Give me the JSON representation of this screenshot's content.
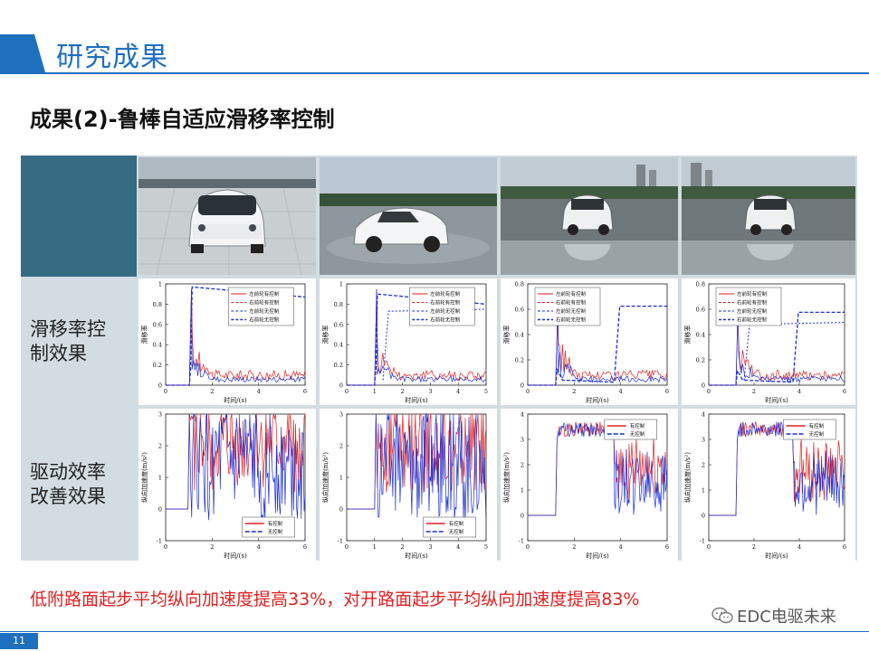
{
  "header": {
    "title": "研究成果"
  },
  "subtitle": "成果(2)-鲁棒自适应滑移率控制",
  "rows": [
    {
      "label_line1": "滑移率控",
      "label_line2": "制效果"
    },
    {
      "label_line1": "驱动效率",
      "label_line2": "改善效果"
    }
  ],
  "slip_plots": [
    {
      "ylabel": "滑移率",
      "xlabel": "时间/(s)",
      "yticks": [
        "0",
        "0.2",
        "0.4",
        "0.6",
        "0.8",
        "1"
      ],
      "xticks": [
        "0",
        "2",
        "4",
        "6"
      ],
      "legend": [
        "左前轮有控制",
        "右前轮有控制",
        "左前轮无控制",
        "右前轮无控制"
      ]
    },
    {
      "ylabel": "滑移率",
      "xlabel": "时间/(s)",
      "yticks": [
        "0",
        "0.2",
        "0.4",
        "0.6",
        "0.8",
        "1"
      ],
      "xticks": [
        "0",
        "1",
        "2",
        "3",
        "4",
        "5"
      ],
      "legend": [
        "左前轮有控制",
        "右前轮有控制",
        "左前轮无控制",
        "右前轮无控制"
      ]
    },
    {
      "ylabel": "滑移率",
      "xlabel": "时间/(s)",
      "yticks": [
        "0",
        "0.2",
        "0.4",
        "0.6",
        "0.8"
      ],
      "xticks": [
        "0",
        "2",
        "4",
        "6"
      ],
      "legend": [
        "左前轮有控制",
        "右前轮有控制",
        "左前轮无控制",
        "右前轮无控制"
      ]
    },
    {
      "ylabel": "滑移率",
      "xlabel": "时间/(s)",
      "yticks": [
        "0",
        "0.2",
        "0.4",
        "0.6",
        "0.8"
      ],
      "xticks": [
        "0",
        "2",
        "4",
        "6"
      ],
      "legend": [
        "左前轮有控制",
        "右前轮有控制",
        "左前轮无控制",
        "右前轮无控制"
      ]
    }
  ],
  "accel_plots": [
    {
      "ylabel": "纵向加速度(m/s²)",
      "xlabel": "时间/(s)",
      "yticks": [
        "-1",
        "0",
        "1",
        "2",
        "3"
      ],
      "xticks": [
        "0",
        "2",
        "4",
        "6"
      ],
      "legend": [
        "有控制",
        "无控制"
      ]
    },
    {
      "ylabel": "纵向加速度(m/s²)",
      "xlabel": "时间/(s)",
      "yticks": [
        "-1",
        "0",
        "1",
        "2",
        "3"
      ],
      "xticks": [
        "0",
        "1",
        "2",
        "3",
        "4",
        "5"
      ],
      "legend": [
        "有控制",
        "无控制"
      ]
    },
    {
      "ylabel": "纵向加速度(m/s²)",
      "xlabel": "时间/(s)",
      "yticks": [
        "-1",
        "0",
        "1",
        "2",
        "3",
        "4"
      ],
      "xticks": [
        "0",
        "2",
        "4",
        "6"
      ],
      "legend": [
        "有控制",
        "无控制"
      ]
    },
    {
      "ylabel": "纵向加速度(m/s²)",
      "xlabel": "时间/(s)",
      "yticks": [
        "-1",
        "0",
        "1",
        "2",
        "3",
        "4"
      ],
      "xticks": [
        "0",
        "2",
        "4",
        "6"
      ],
      "legend": [
        "有控制",
        "无控制"
      ]
    }
  ],
  "bottom_text": "低附路面起步平均纵向加速度提高33%，对开路面起步平均纵向加速度提高83%",
  "brand": "EDC电驱未来",
  "page_number": "11",
  "colors": {
    "accent": "#1f6fbf",
    "table_bg": "#d3dce1",
    "header_cell": "#356c84",
    "highlight": "#e21f1f",
    "series_red": "#e21f1f",
    "series_blue": "#1a2fd6"
  }
}
